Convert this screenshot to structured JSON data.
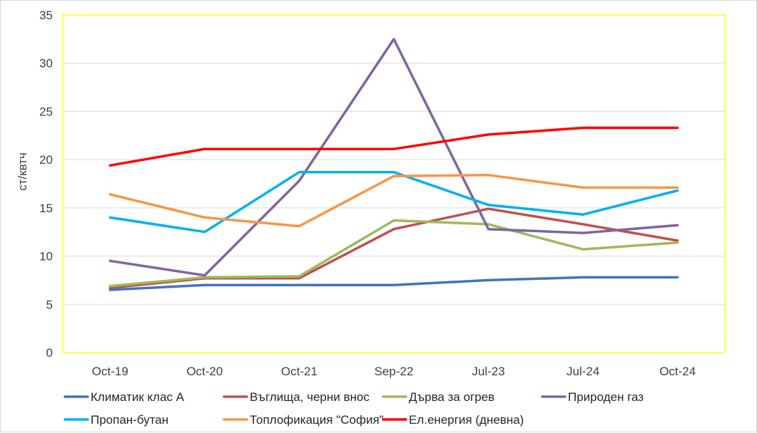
{
  "chart_data": {
    "type": "line",
    "title": "",
    "xlabel": "",
    "ylabel": "ст/квтч",
    "categories": [
      "Oct-19",
      "Oct-20",
      "Oct-21",
      "Sep-22",
      "Jul-23",
      "Jul-24",
      "Oct-24"
    ],
    "yticks": [
      "0",
      "5",
      "10",
      "15",
      "20",
      "25",
      "30",
      "35"
    ],
    "ylim": [
      0,
      35
    ],
    "grid": true,
    "legend_position": "bottom",
    "series": [
      {
        "name": "Климатик клас А",
        "color": "#4472c4",
        "values": [
          6.5,
          7.0,
          7.0,
          7.0,
          7.5,
          7.8,
          7.8
        ]
      },
      {
        "name": "Въглища, черни внос",
        "color": "#c0504d",
        "values": [
          6.7,
          7.7,
          7.7,
          12.8,
          14.9,
          13.3,
          11.6
        ]
      },
      {
        "name": "Дърва за огрев",
        "color": "#9bbb59",
        "values": [
          6.9,
          7.8,
          7.9,
          13.7,
          13.3,
          10.7,
          11.4
        ]
      },
      {
        "name": "Природен газ",
        "color": "#8064a2",
        "values": [
          9.5,
          8.0,
          17.8,
          32.5,
          12.8,
          12.4,
          13.2
        ]
      },
      {
        "name": "Пропан-бутан",
        "color": "#00b0f0",
        "values": [
          14.0,
          12.5,
          18.7,
          18.7,
          15.3,
          14.3,
          16.8
        ]
      },
      {
        "name": "Топлофикация \"София\"",
        "color": "#f79646",
        "values": [
          16.4,
          14.0,
          13.1,
          18.3,
          18.4,
          17.1,
          17.1
        ]
      },
      {
        "name": "Ел.енергия (дневна)",
        "color": "#ff0000",
        "values": [
          19.4,
          21.1,
          21.1,
          21.1,
          22.6,
          23.3,
          23.3
        ]
      }
    ]
  }
}
